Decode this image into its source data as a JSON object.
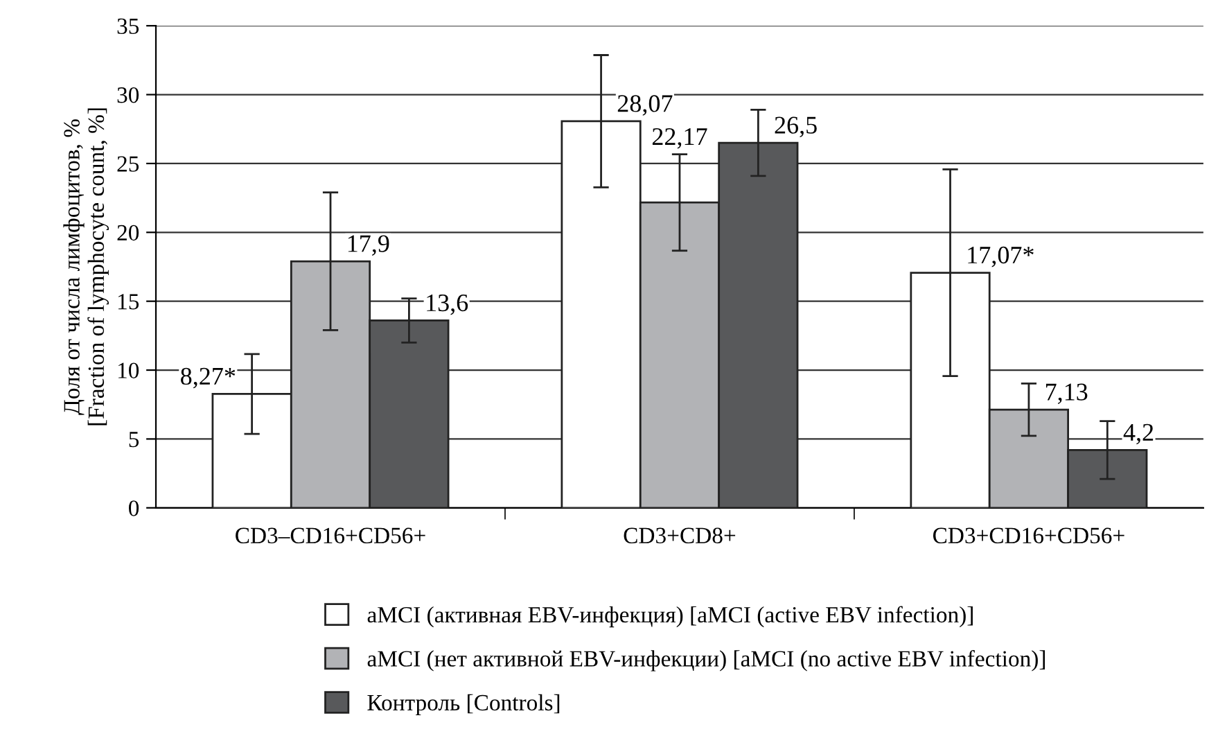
{
  "chart_data": {
    "type": "bar",
    "ylabel": "Доля от числа лимфоцитов, %\n[Fraction of lymphocyte count, %]",
    "categories": [
      "CD3–CD16+CD56+",
      "CD3+CD8+",
      "CD3+CD16+CD56+"
    ],
    "series": [
      {
        "name": "aMCI (активная EBV-инфекция) [aMCI (active EBV infection)]",
        "color": "#ffffff",
        "values": [
          8.27,
          28.07,
          17.07
        ],
        "errors": [
          2.9,
          4.8,
          7.5
        ],
        "value_labels": [
          "8,27*",
          "28,07",
          "17,07*"
        ]
      },
      {
        "name": "aMCI (нет активной EBV-инфекции) [aMCI (no active EBV infection)]",
        "color": "#b2b3b6",
        "values": [
          17.9,
          22.17,
          7.13
        ],
        "errors": [
          5.0,
          3.5,
          1.9
        ],
        "value_labels": [
          "17,9",
          "22,17",
          "7,13"
        ]
      },
      {
        "name": "Контроль [Controls]",
        "color": "#58595b",
        "values": [
          13.6,
          26.5,
          4.2
        ],
        "errors": [
          1.6,
          2.4,
          2.1
        ],
        "value_labels": [
          "13,6",
          "26,5",
          "4,2"
        ]
      }
    ],
    "ylim": [
      0,
      35
    ],
    "yticks": [
      0,
      5,
      10,
      15,
      20,
      25,
      30,
      35
    ],
    "grid": "y",
    "legend": "bottom"
  }
}
